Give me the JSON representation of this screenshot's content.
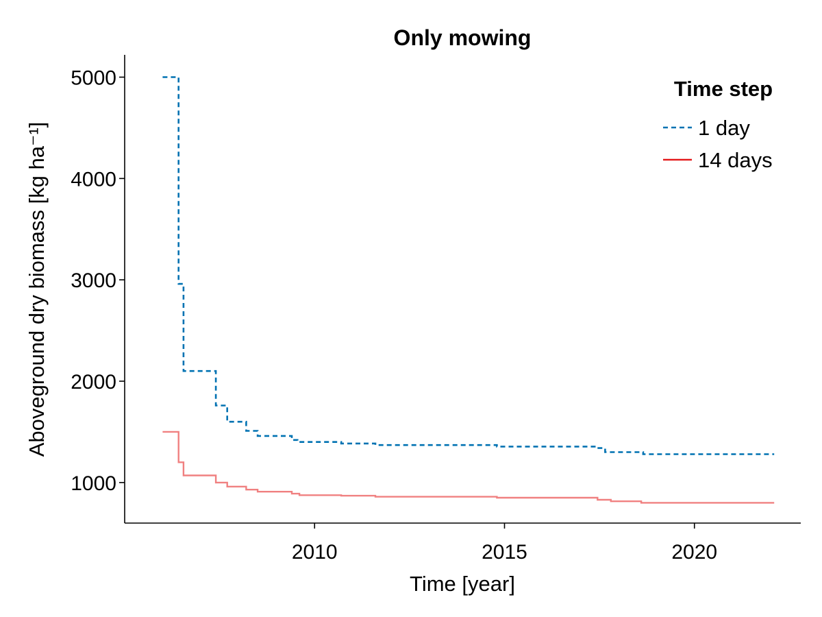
{
  "chart_data": {
    "type": "line",
    "title": "Only mowing",
    "xlabel": "Time [year]",
    "ylabel": "Aboveground dry biomass [kg ha⁻¹]",
    "xlim": [
      2005.0,
      2022.8
    ],
    "ylim": [
      600,
      5220
    ],
    "xticks": [
      2010,
      2015,
      2020
    ],
    "yticks": [
      1000,
      2000,
      3000,
      4000,
      5000
    ],
    "grid": false,
    "legend": {
      "title": "Time step",
      "placement": "top-right"
    },
    "series": [
      {
        "name": "1 day",
        "color": "#0072b2",
        "style": "dashed",
        "step": true,
        "x": [
          2006.0,
          2006.42,
          2006.55,
          2007.4,
          2007.7,
          2008.2,
          2008.5,
          2009.4,
          2009.55,
          2010.7,
          2011.6,
          2014.8,
          2017.45,
          2017.65,
          2018.65,
          2022.1
        ],
        "y": [
          5000,
          2960,
          2100,
          1760,
          1600,
          1510,
          1460,
          1420,
          1400,
          1385,
          1370,
          1355,
          1340,
          1300,
          1280,
          1280
        ]
      },
      {
        "name": "14 days",
        "color": "#f08080",
        "style": "solid",
        "step": true,
        "x": [
          2006.0,
          2006.42,
          2006.55,
          2007.4,
          2007.7,
          2008.2,
          2008.5,
          2009.4,
          2009.6,
          2010.7,
          2011.6,
          2014.8,
          2017.45,
          2017.8,
          2018.6,
          2022.1
        ],
        "y": [
          1500,
          1200,
          1070,
          1000,
          960,
          930,
          910,
          890,
          875,
          870,
          860,
          850,
          830,
          815,
          800,
          800
        ]
      }
    ]
  }
}
